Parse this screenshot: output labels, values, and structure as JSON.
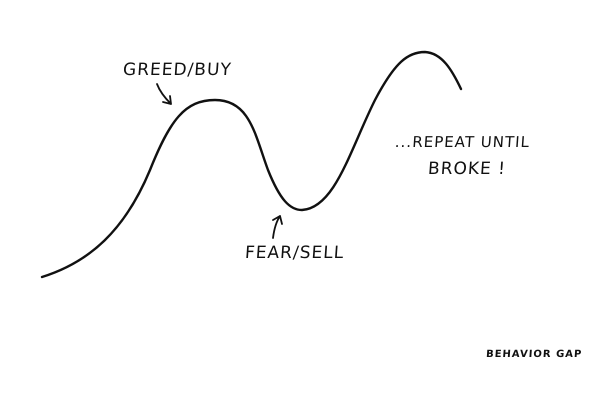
{
  "labels": {
    "greed": "GREED/BUY",
    "fear": "FEAR/SELL",
    "repeat_line1": "...REPEAT UNTIL",
    "repeat_line2": "BROKE !",
    "credit": "BEHAVIOR GAP"
  },
  "colors": {
    "ink": "#111111",
    "background": "#ffffff"
  }
}
